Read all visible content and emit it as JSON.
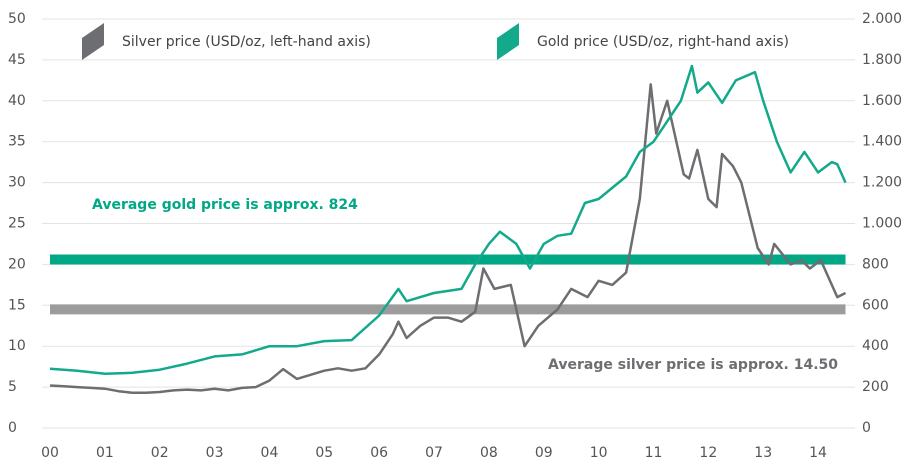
{
  "chart_data": {
    "type": "line",
    "xlim": [
      0,
      14.5
    ],
    "xticks": [
      {
        "value": 0,
        "label": "00"
      },
      {
        "value": 1,
        "label": "01"
      },
      {
        "value": 2,
        "label": "02"
      },
      {
        "value": 3,
        "label": "03"
      },
      {
        "value": 4,
        "label": "04"
      },
      {
        "value": 5,
        "label": "05"
      },
      {
        "value": 6,
        "label": "06"
      },
      {
        "value": 7,
        "label": "07"
      },
      {
        "value": 8,
        "label": "08"
      },
      {
        "value": 9,
        "label": "09"
      },
      {
        "value": 10,
        "label": "10"
      },
      {
        "value": 11,
        "label": "11"
      },
      {
        "value": 12,
        "label": "12"
      },
      {
        "value": 13,
        "label": "13"
      },
      {
        "value": 14,
        "label": "14"
      }
    ],
    "ylim": [
      0,
      50
    ],
    "yticks": [
      0,
      5,
      10,
      15,
      20,
      25,
      30,
      35,
      40,
      45,
      50
    ],
    "y2lim": [
      0,
      2000
    ],
    "y2ticks": [
      0,
      200,
      400,
      600,
      800,
      {
        "value": 1000,
        "label": "1.000"
      },
      {
        "value": 1200,
        "label": "1.200"
      },
      {
        "value": 1400,
        "label": "1.400"
      },
      {
        "value": 1600,
        "label": "1.600"
      },
      {
        "value": 1800,
        "label": "1.800"
      },
      {
        "value": 2000,
        "label": "2.000"
      }
    ],
    "grid": true,
    "series": [
      {
        "name": "Silver price (USD/oz, left-hand axis)",
        "color": "#6d6e71",
        "axis": "y",
        "x": [
          0,
          0.25,
          0.5,
          0.75,
          1,
          1.25,
          1.5,
          1.75,
          2,
          2.25,
          2.5,
          2.75,
          3,
          3.25,
          3.5,
          3.75,
          4,
          4.25,
          4.5,
          4.75,
          5,
          5.25,
          5.5,
          5.75,
          6,
          6.25,
          6.35,
          6.5,
          6.75,
          7,
          7.25,
          7.5,
          7.75,
          7.9,
          8.1,
          8.4,
          8.65,
          8.9,
          9.25,
          9.5,
          9.8,
          10,
          10.25,
          10.5,
          10.75,
          10.95,
          11.05,
          11.25,
          11.55,
          11.65,
          11.8,
          12,
          12.15,
          12.25,
          12.45,
          12.6,
          12.9,
          13.1,
          13.2,
          13.5,
          13.7,
          13.85,
          14.05,
          14.35,
          14.5
        ],
        "values": [
          5.2,
          5.1,
          5.0,
          4.9,
          4.8,
          4.5,
          4.3,
          4.3,
          4.4,
          4.6,
          4.7,
          4.6,
          4.8,
          4.6,
          4.9,
          5.0,
          5.8,
          7.2,
          6.0,
          6.5,
          7.0,
          7.3,
          7.0,
          7.3,
          9.0,
          11.5,
          13.0,
          11.0,
          12.5,
          13.5,
          13.5,
          13.0,
          14.2,
          19.5,
          17.0,
          17.5,
          10.0,
          12.5,
          14.5,
          17.0,
          16.0,
          18.0,
          17.5,
          19.0,
          28.0,
          42.0,
          36.0,
          40.0,
          31.0,
          30.5,
          34.0,
          28.0,
          27.0,
          33.5,
          32.0,
          30.0,
          22.0,
          20.0,
          22.5,
          20.0,
          20.5,
          19.5,
          20.5,
          16.0,
          16.5
        ]
      },
      {
        "name": "Gold price (USD/oz, right-hand axis)",
        "color": "#13a98b",
        "axis": "y2",
        "x": [
          0,
          0.5,
          1,
          1.5,
          2,
          2.5,
          3,
          3.5,
          4,
          4.5,
          5,
          5.5,
          6,
          6.35,
          6.5,
          7,
          7.5,
          7.75,
          8,
          8.2,
          8.5,
          8.75,
          9,
          9.25,
          9.5,
          9.75,
          10,
          10.5,
          10.75,
          11,
          11.25,
          11.5,
          11.7,
          11.8,
          12,
          12.25,
          12.5,
          12.85,
          13,
          13.25,
          13.5,
          13.75,
          14,
          14.25,
          14.35,
          14.5
        ],
        "values": [
          290,
          280,
          265,
          270,
          285,
          315,
          350,
          360,
          400,
          400,
          425,
          430,
          550,
          680,
          620,
          660,
          680,
          800,
          900,
          960,
          900,
          780,
          900,
          940,
          950,
          1100,
          1120,
          1230,
          1350,
          1400,
          1500,
          1600,
          1770,
          1640,
          1690,
          1590,
          1700,
          1740,
          1600,
          1400,
          1250,
          1350,
          1250,
          1300,
          1290,
          1200
        ]
      }
    ],
    "reference_lines": [
      {
        "value": 824,
        "axis": "y2",
        "color": "#00a886",
        "label": "Average gold price is approx. 824"
      },
      {
        "value": 14.5,
        "axis": "y",
        "color": "#9c9c9c",
        "label": "Average silver price is approx. 14.50"
      }
    ]
  }
}
